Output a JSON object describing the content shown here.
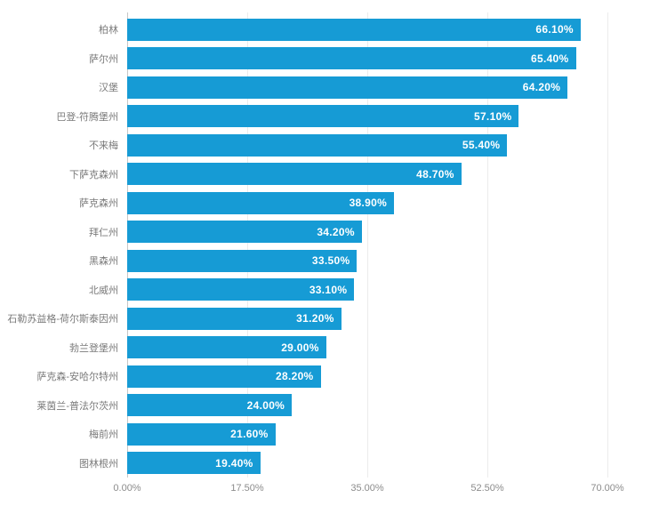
{
  "chart_data": {
    "type": "bar",
    "orientation": "horizontal",
    "title": "",
    "xlabel": "",
    "ylabel": "",
    "grid": true,
    "xlim": [
      0,
      70
    ],
    "x_ticks": [
      "0.00%",
      "17.50%",
      "35.00%",
      "52.50%",
      "70.00%"
    ],
    "categories": [
      "柏林",
      "萨尔州",
      "汉堡",
      "巴登-符腾堡州",
      "不来梅",
      "下萨克森州",
      "萨克森州",
      "拜仁州",
      "黑森州",
      "北威州",
      "石勒苏益格-荷尔斯泰因州",
      "勃兰登堡州",
      "萨克森-安哈尔特州",
      "莱茵兰-普法尔茨州",
      "梅前州",
      "图林根州"
    ],
    "values": [
      66.1,
      65.4,
      64.2,
      57.1,
      55.4,
      48.7,
      38.9,
      34.2,
      33.5,
      33.1,
      31.2,
      29.0,
      28.2,
      24.0,
      21.6,
      19.4
    ],
    "value_labels": [
      "66.10%",
      "65.40%",
      "64.20%",
      "57.10%",
      "55.40%",
      "48.70%",
      "38.90%",
      "34.20%",
      "33.50%",
      "33.10%",
      "31.20%",
      "29.00%",
      "28.20%",
      "24.00%",
      "21.60%",
      "19.40%"
    ],
    "colors": {
      "bar": "#169bd5",
      "value_label": "#ffffff",
      "category_label": "#7a7a7a",
      "tick_label": "#8c8c8c",
      "gridline": "#ececec",
      "axis_line": "#c6c6c6",
      "background": "#ffffff"
    }
  }
}
